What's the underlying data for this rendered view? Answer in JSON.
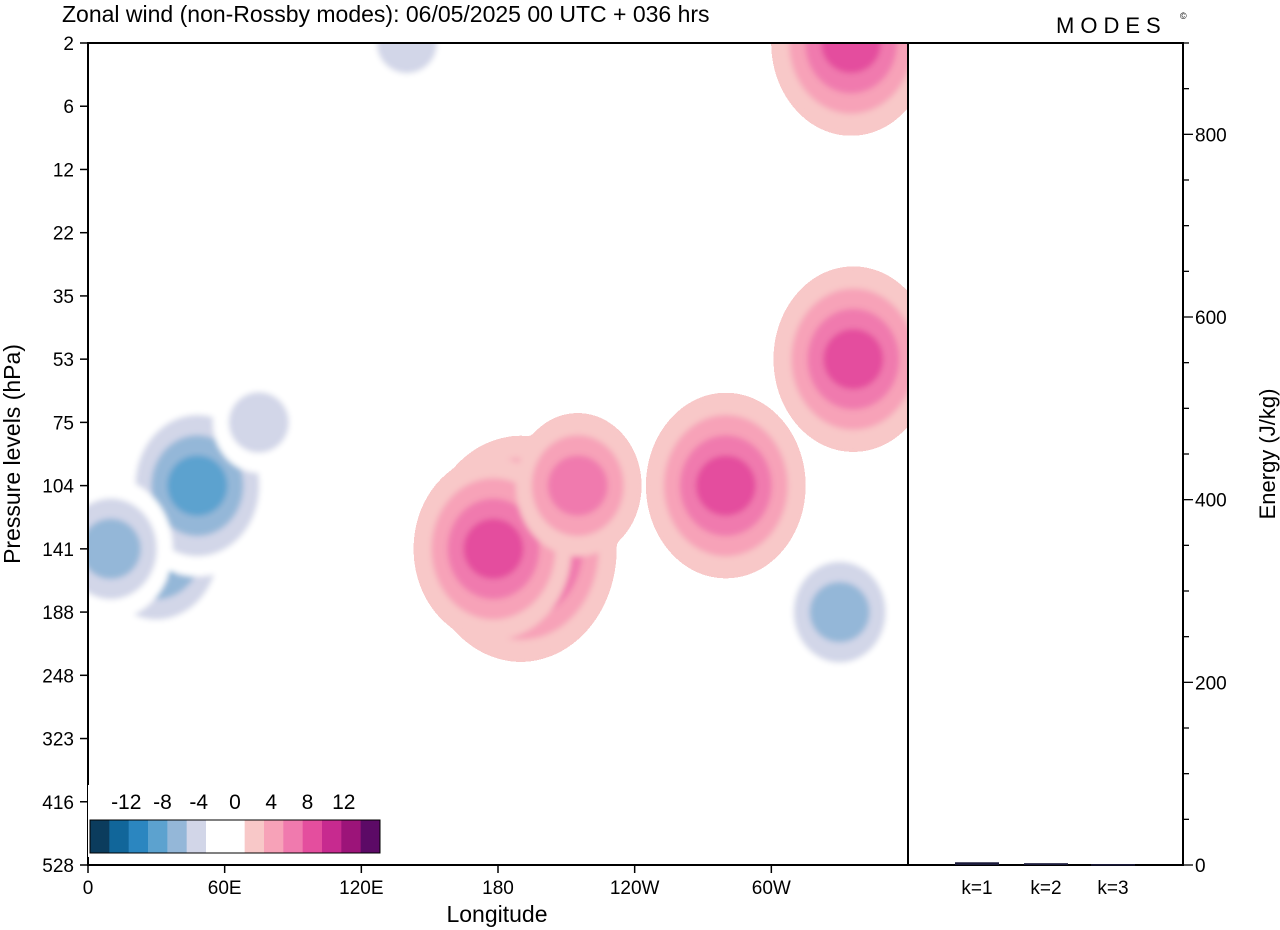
{
  "title": "Zonal wind (non-Rossby modes):  06/05/2025  00 UTC  + 036 hrs",
  "brand": "MODES",
  "brand_mark": "©",
  "chart_data": [
    {
      "type": "heatmap",
      "title": "Zonal wind (non-Rossby modes):  06/05/2025  00 UTC  + 036 hrs",
      "xlabel": "Longitude",
      "ylabel": "Pressure levels (hPa)",
      "x_ticks": [
        "0",
        "60E",
        "120E",
        "180",
        "120W",
        "60W"
      ],
      "x_tick_values": [
        0,
        60,
        120,
        180,
        240,
        300
      ],
      "xlim": [
        0,
        360
      ],
      "y_ticks": [
        "2",
        "6",
        "12",
        "22",
        "35",
        "53",
        "75",
        "104",
        "141",
        "188",
        "248",
        "323",
        "416",
        "528"
      ],
      "y_scale": "pressure levels (top to bottom)",
      "colorbar": {
        "labels": [
          "-12",
          "-8",
          "-4",
          "0",
          "4",
          "8",
          "12"
        ],
        "label_values": [
          -12,
          -8,
          -4,
          0,
          4,
          8,
          12
        ],
        "levels": [
          -14,
          -12,
          -10,
          -8,
          -6,
          -4,
          -2,
          2,
          4,
          6,
          8,
          10,
          12,
          14
        ],
        "colors": [
          "#0b3c5d",
          "#11669a",
          "#2b86c0",
          "#5ca2cf",
          "#94b7d8",
          "#d2d6e8",
          "#ffffff",
          "#ffffff",
          "#f8c8c8",
          "#f7a2b8",
          "#f07aae",
          "#e44e9e",
          "#c72a8f",
          "#9c1479",
          "#5c0a66"
        ]
      },
      "features": [
        {
          "lon": 30,
          "level": "141",
          "value": -9
        },
        {
          "lon": 48,
          "level": "104",
          "value": -8
        },
        {
          "lon": 10,
          "level": "141",
          "value": -6
        },
        {
          "lon": 140,
          "level": "2",
          "value": -5
        },
        {
          "lon": 190,
          "level": "141",
          "value": 10
        },
        {
          "lon": 178,
          "level": "141",
          "value": 8
        },
        {
          "lon": 215,
          "level": "104",
          "value": 6
        },
        {
          "lon": 280,
          "level": "104",
          "value": 8
        },
        {
          "lon": 335,
          "level": "2",
          "value": 8
        },
        {
          "lon": 336,
          "level": "53",
          "value": 8
        },
        {
          "lon": 330,
          "level": "188",
          "value": -6
        },
        {
          "lon": 75,
          "level": "75",
          "value": -5
        }
      ]
    },
    {
      "type": "bar",
      "title": "",
      "xlabel": "",
      "ylabel": "Energy (J/kg)",
      "categories": [
        "k=1",
        "k=2",
        "k=3"
      ],
      "values": [
        3,
        2,
        1
      ],
      "ylim": [
        0,
        900
      ],
      "y_ticks": [
        "0",
        "200",
        "400",
        "600",
        "800"
      ],
      "y_tick_values": [
        0,
        200,
        400,
        600,
        800
      ]
    }
  ]
}
